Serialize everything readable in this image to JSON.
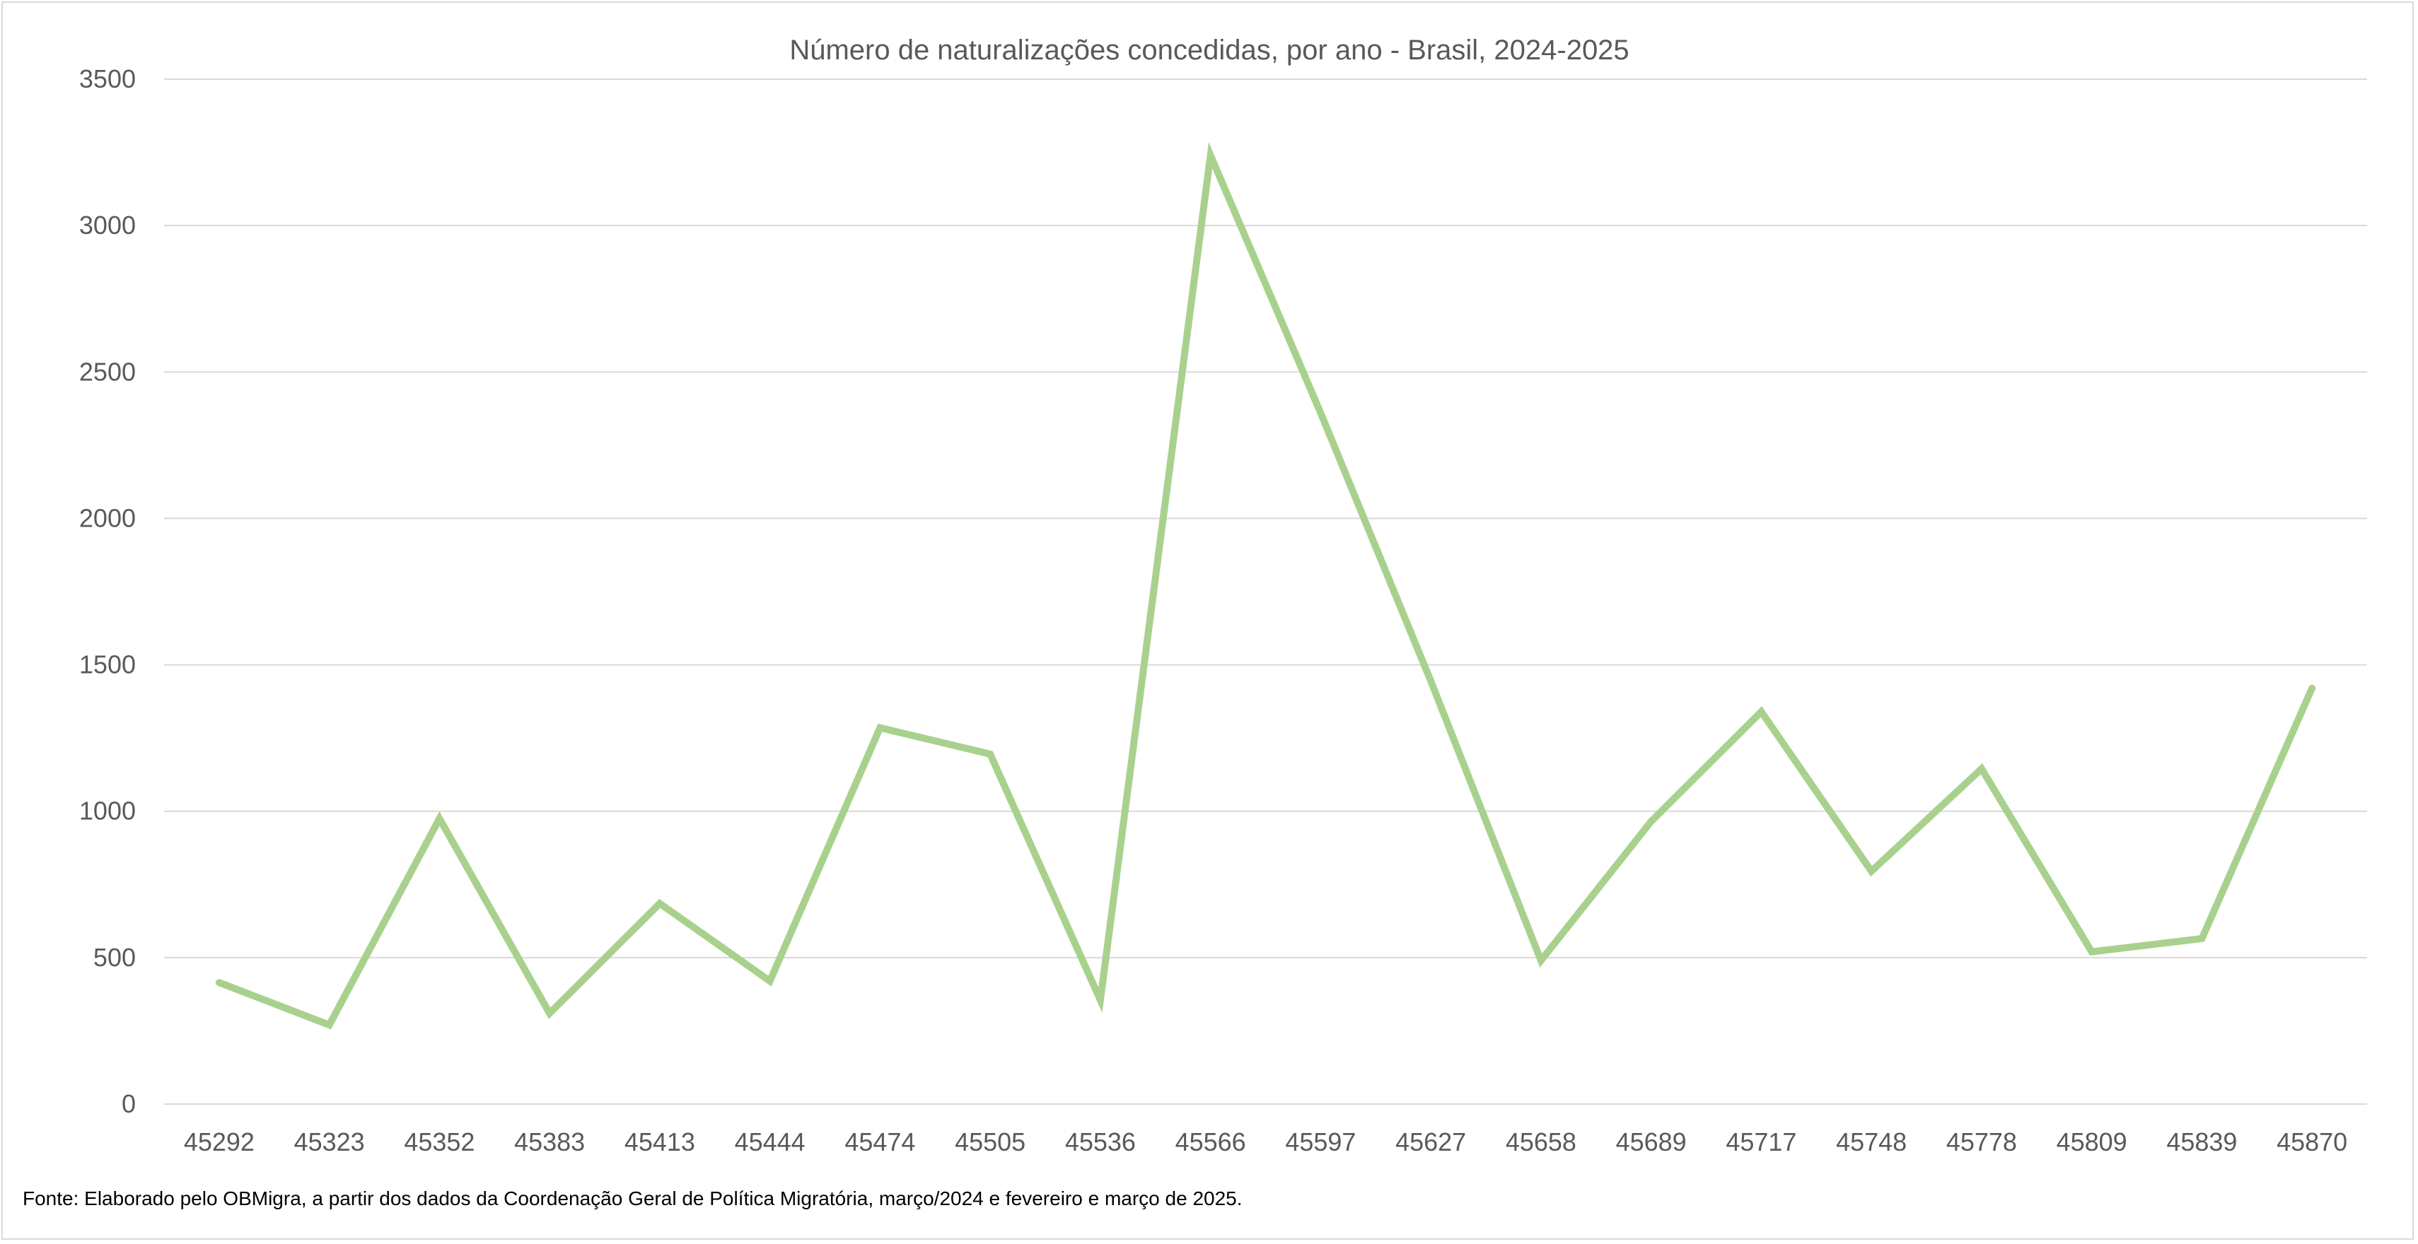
{
  "chart_data": {
    "type": "line",
    "title": "Número de naturalizações concedidas, por ano - Brasil, 2024-2025",
    "xlabel": "",
    "ylabel": "",
    "categories": [
      "45292",
      "45323",
      "45352",
      "45383",
      "45413",
      "45444",
      "45474",
      "45505",
      "45536",
      "45566",
      "45597",
      "45627",
      "45658",
      "45689",
      "45717",
      "45748",
      "45778",
      "45809",
      "45839",
      "45870"
    ],
    "series": [
      {
        "values": [
          415,
          270,
          975,
          310,
          685,
          420,
          1285,
          1195,
          355,
          3240,
          2360,
          1445,
          490,
          965,
          1340,
          795,
          1145,
          520,
          565,
          1420
        ],
        "color": "#a9d18e"
      }
    ],
    "ylim": [
      0,
      3500
    ],
    "yticks": [
      0,
      500,
      1000,
      1500,
      2000,
      2500,
      3000,
      3500
    ],
    "grid": true,
    "legend": "none"
  },
  "footnote": "Fonte: Elaborado pelo OBMigra, a partir dos dados da Coordenação Geral de Política Migratória, março/2024 e fevereiro e março de 2025."
}
